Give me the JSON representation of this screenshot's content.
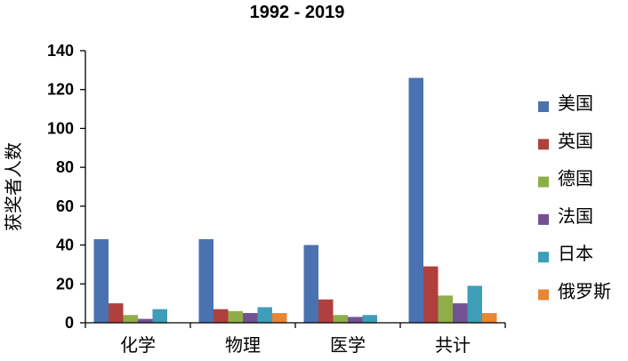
{
  "chart_data": {
    "type": "bar",
    "title": "1992 - 2019",
    "xlabel": "",
    "ylabel": "获奖者人数",
    "ylim": [
      0,
      140
    ],
    "yticks": [
      0,
      20,
      40,
      60,
      80,
      100,
      120,
      140
    ],
    "grid": false,
    "legend_position": "right",
    "categories": [
      "化学",
      "物理",
      "医学",
      "共计"
    ],
    "series": [
      {
        "name": "美国",
        "color": "#4A72B0",
        "values": [
          43,
          43,
          40,
          126
        ]
      },
      {
        "name": "英国",
        "color": "#B0403D",
        "values": [
          10,
          7,
          12,
          29
        ]
      },
      {
        "name": "德国",
        "color": "#8FAE4A",
        "values": [
          4,
          6,
          4,
          14
        ]
      },
      {
        "name": "法国",
        "color": "#735293",
        "values": [
          2,
          5,
          3,
          10
        ]
      },
      {
        "name": "日本",
        "color": "#3E9DB9",
        "values": [
          7,
          8,
          4,
          19
        ]
      },
      {
        "name": "俄罗斯",
        "color": "#E88634",
        "values": [
          0,
          5,
          0,
          5
        ]
      }
    ]
  }
}
